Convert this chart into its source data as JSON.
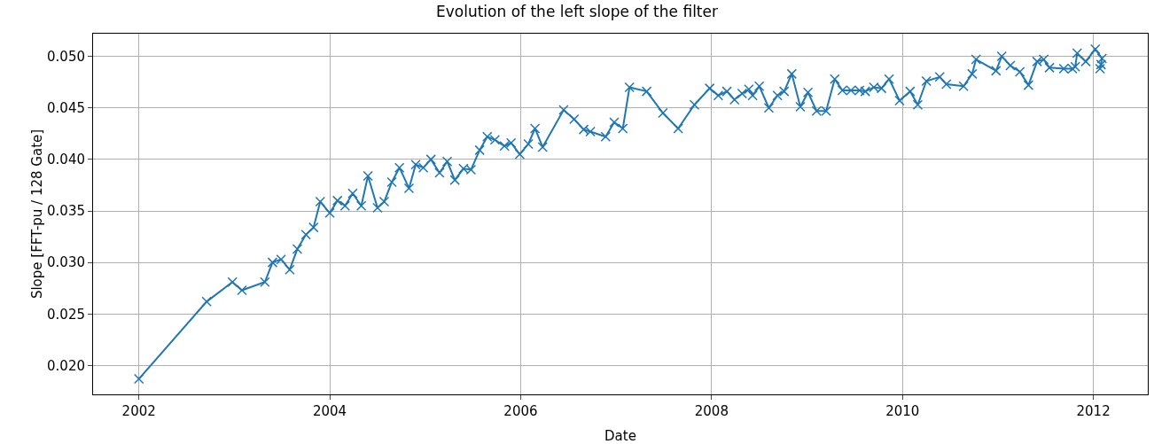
{
  "chart_data": {
    "type": "line",
    "title": "Evolution of the left slope of the filter",
    "xlabel": "Date",
    "ylabel": "Slope [FFT-pu / 128 Gate]",
    "x": [
      2002.0,
      2002.71,
      2002.98,
      2003.08,
      2003.32,
      2003.4,
      2003.49,
      2003.58,
      2003.66,
      2003.75,
      2003.83,
      2003.9,
      2004.0,
      2004.08,
      2004.16,
      2004.24,
      2004.33,
      2004.4,
      2004.5,
      2004.57,
      2004.65,
      2004.73,
      2004.83,
      2004.9,
      2004.98,
      2005.06,
      2005.15,
      2005.23,
      2005.31,
      2005.4,
      2005.48,
      2005.57,
      2005.65,
      2005.73,
      2005.83,
      2005.9,
      2005.99,
      2006.08,
      2006.15,
      2006.23,
      2006.45,
      2006.56,
      2006.66,
      2006.73,
      2006.89,
      2006.98,
      2007.07,
      2007.14,
      2007.32,
      2007.49,
      2007.65,
      2007.82,
      2007.98,
      2008.07,
      2008.16,
      2008.24,
      2008.32,
      2008.39,
      2008.43,
      2008.5,
      2008.6,
      2008.69,
      2008.76,
      2008.84,
      2008.93,
      2009.01,
      2009.1,
      2009.2,
      2009.29,
      2009.37,
      2009.46,
      2009.55,
      2009.61,
      2009.7,
      2009.78,
      2009.86,
      2009.97,
      2010.08,
      2010.16,
      2010.25,
      2010.39,
      2010.46,
      2010.64,
      2010.73,
      2010.77,
      2010.98,
      2011.04,
      2011.13,
      2011.23,
      2011.32,
      2011.41,
      2011.48,
      2011.54,
      2011.69,
      2011.78,
      2011.81,
      2011.83,
      2011.92,
      2012.02,
      2012.09,
      2012.07,
      2012.08
    ],
    "series": [
      {
        "color": "#1f77b4",
        "values": [
          0.0187,
          0.0262,
          0.0281,
          0.0273,
          0.0281,
          0.03,
          0.0303,
          0.0293,
          0.0313,
          0.0327,
          0.0334,
          0.0359,
          0.0348,
          0.036,
          0.0355,
          0.0367,
          0.0355,
          0.0384,
          0.0353,
          0.0359,
          0.0378,
          0.0392,
          0.0372,
          0.0395,
          0.0392,
          0.04,
          0.0387,
          0.0398,
          0.038,
          0.0391,
          0.039,
          0.0409,
          0.0422,
          0.0419,
          0.0413,
          0.0416,
          0.0405,
          0.0415,
          0.043,
          0.0412,
          0.0448,
          0.0439,
          0.0429,
          0.0427,
          0.0422,
          0.0436,
          0.043,
          0.047,
          0.0466,
          0.0445,
          0.043,
          0.0453,
          0.0469,
          0.0462,
          0.0466,
          0.0458,
          0.0464,
          0.0468,
          0.0462,
          0.0471,
          0.045,
          0.0462,
          0.0466,
          0.0483,
          0.0451,
          0.0465,
          0.0447,
          0.0447,
          0.0478,
          0.0467,
          0.0467,
          0.0467,
          0.0466,
          0.047,
          0.0469,
          0.0478,
          0.0457,
          0.0466,
          0.0453,
          0.0476,
          0.048,
          0.0473,
          0.0471,
          0.0483,
          0.0497,
          0.0486,
          0.05,
          0.0491,
          0.0485,
          0.0472,
          0.0495,
          0.0497,
          0.0489,
          0.0488,
          0.0488,
          0.049,
          0.0503,
          0.0495,
          0.0507,
          0.0498,
          0.0488,
          0.0492
        ]
      }
    ],
    "xlim": [
      2001.52,
      2012.57
    ],
    "xticks": [
      2002,
      2004,
      2006,
      2008,
      2010,
      2012
    ],
    "ylim": [
      0.0172,
      0.0522
    ],
    "yticks": [
      {
        "value": 0.02,
        "label": "0.020"
      },
      {
        "value": 0.025,
        "label": "0.025"
      },
      {
        "value": 0.03,
        "label": "0.030"
      },
      {
        "value": 0.035,
        "label": "0.035"
      },
      {
        "value": 0.04,
        "label": "0.040"
      },
      {
        "value": 0.045,
        "label": "0.045"
      },
      {
        "value": 0.05,
        "label": "0.050"
      }
    ],
    "grid": true,
    "marker": "cross",
    "line_style": "solid"
  }
}
